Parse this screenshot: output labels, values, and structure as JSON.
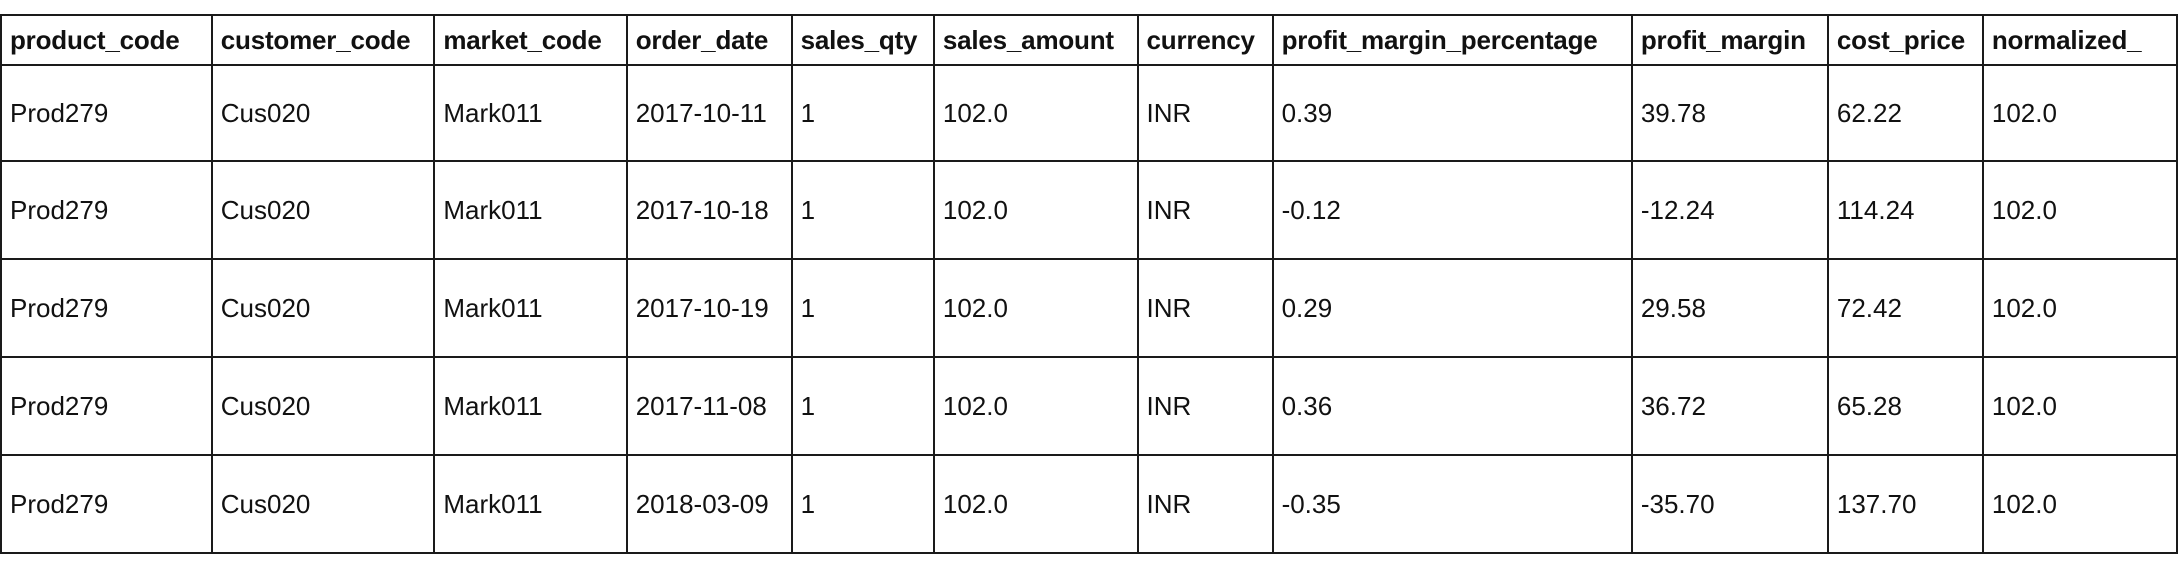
{
  "table": {
    "columns": [
      "product_code",
      "customer_code",
      "market_code",
      "order_date",
      "sales_qty",
      "sales_amount",
      "currency",
      "profit_margin_percentage",
      "profit_margin",
      "cost_price",
      "normalized_"
    ],
    "rows": [
      [
        "Prod279",
        "Cus020",
        "Mark011",
        "2017-10-11",
        "1",
        "102.0",
        "INR",
        "0.39",
        "39.78",
        "62.22",
        "102.0"
      ],
      [
        "Prod279",
        "Cus020",
        "Mark011",
        "2017-10-18",
        "1",
        "102.0",
        "INR",
        "-0.12",
        "-12.24",
        "114.24",
        "102.0"
      ],
      [
        "Prod279",
        "Cus020",
        "Mark011",
        "2017-10-19",
        "1",
        "102.0",
        "INR",
        "0.29",
        "29.58",
        "72.42",
        "102.0"
      ],
      [
        "Prod279",
        "Cus020",
        "Mark011",
        "2017-11-08",
        "1",
        "102.0",
        "INR",
        "0.36",
        "36.72",
        "65.28",
        "102.0"
      ],
      [
        "Prod279",
        "Cus020",
        "Mark011",
        "2018-03-09",
        "1",
        "102.0",
        "INR",
        "-0.35",
        "-35.70",
        "137.70",
        "102.0"
      ]
    ]
  }
}
